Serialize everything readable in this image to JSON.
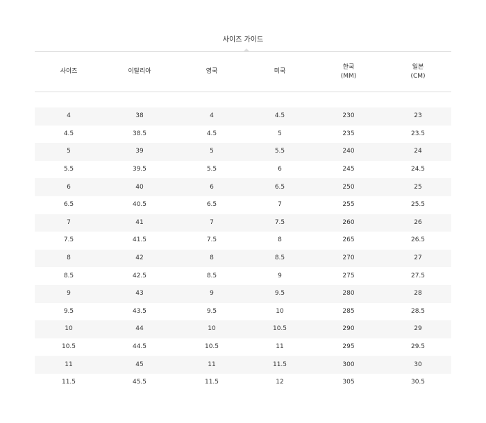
{
  "title": "사이즈 가이드",
  "table": {
    "headers": [
      [
        "사이즈",
        ""
      ],
      [
        "이탈리아",
        ""
      ],
      [
        "영국",
        ""
      ],
      [
        "미국",
        ""
      ],
      [
        "한국",
        "(MM)"
      ],
      [
        "일본",
        "(CM)"
      ]
    ],
    "rows": [
      [
        "4",
        "38",
        "4",
        "4.5",
        "230",
        "23"
      ],
      [
        "4.5",
        "38.5",
        "4.5",
        "5",
        "235",
        "23.5"
      ],
      [
        "5",
        "39",
        "5",
        "5.5",
        "240",
        "24"
      ],
      [
        "5.5",
        "39.5",
        "5.5",
        "6",
        "245",
        "24.5"
      ],
      [
        "6",
        "40",
        "6",
        "6.5",
        "250",
        "25"
      ],
      [
        "6.5",
        "40.5",
        "6.5",
        "7",
        "255",
        "25.5"
      ],
      [
        "7",
        "41",
        "7",
        "7.5",
        "260",
        "26"
      ],
      [
        "7.5",
        "41.5",
        "7.5",
        "8",
        "265",
        "26.5"
      ],
      [
        "8",
        "42",
        "8",
        "8.5",
        "270",
        "27"
      ],
      [
        "8.5",
        "42.5",
        "8.5",
        "9",
        "275",
        "27.5"
      ],
      [
        "9",
        "43",
        "9",
        "9.5",
        "280",
        "28"
      ],
      [
        "9.5",
        "43.5",
        "9.5",
        "10",
        "285",
        "28.5"
      ],
      [
        "10",
        "44",
        "10",
        "10.5",
        "290",
        "29"
      ],
      [
        "10.5",
        "44.5",
        "10.5",
        "11",
        "295",
        "29.5"
      ],
      [
        "11",
        "45",
        "11",
        "11.5",
        "300",
        "30"
      ],
      [
        "11.5",
        "45.5",
        "11.5",
        "12",
        "305",
        "30.5"
      ]
    ]
  }
}
